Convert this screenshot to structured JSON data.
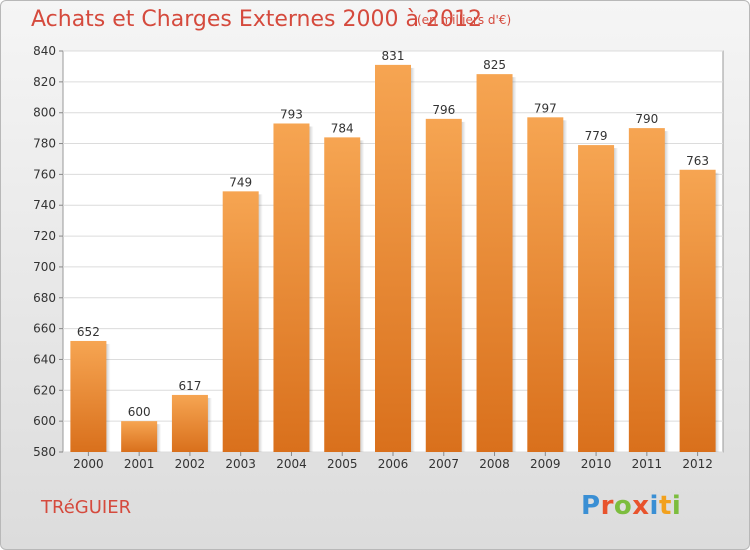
{
  "header": {
    "title": "Achats et Charges Externes 2000 à 2012",
    "subtitle": "(en milliers d'€)"
  },
  "footer": {
    "commune": "TRéGUIER",
    "brand": [
      "P",
      "r",
      "o",
      "x",
      "i",
      "t",
      "i"
    ],
    "brand_colors": [
      "#3a8fd4",
      "#e8532c",
      "#7cbd3e",
      "#e8532c",
      "#3a8fd4",
      "#f2a11d",
      "#7cbd3e"
    ]
  },
  "chart_data": {
    "type": "bar",
    "title": "Achats et Charges Externes 2000 à 2012",
    "subtitle": "(en milliers d'€)",
    "categories": [
      "2000",
      "2001",
      "2002",
      "2003",
      "2004",
      "2005",
      "2006",
      "2007",
      "2008",
      "2009",
      "2010",
      "2011",
      "2012"
    ],
    "values": [
      652,
      600,
      617,
      749,
      793,
      784,
      831,
      796,
      825,
      797,
      779,
      790,
      763
    ],
    "ylim": [
      580,
      840
    ],
    "yticks": [
      580,
      600,
      620,
      640,
      660,
      680,
      700,
      720,
      740,
      760,
      780,
      800,
      820,
      840
    ],
    "grid": true,
    "bar_color": "#f0922e",
    "xlabel": "",
    "ylabel": ""
  }
}
